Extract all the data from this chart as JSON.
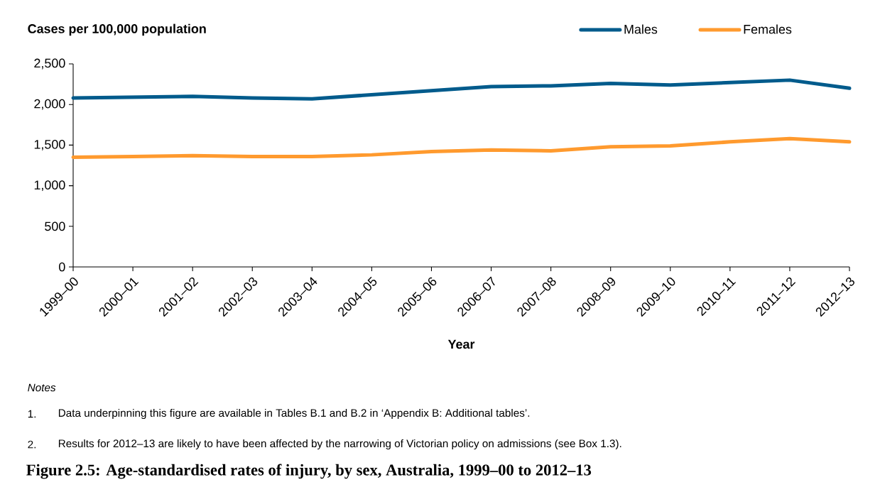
{
  "chart_data": {
    "type": "line",
    "title": "Figure 2.5: Age-standardised rates of injury, by sex, Australia, 1999–00 to 2012–13",
    "ylabel": "Cases per 100,000 population",
    "xlabel": "Year",
    "categories": [
      "1999–00",
      "2000–01",
      "2001–02",
      "2002–03",
      "2003–04",
      "2004–05",
      "2005–06",
      "2006–07",
      "2007–08",
      "2008–09",
      "2009–10",
      "2010–11",
      "2011–12",
      "2012–13"
    ],
    "series": [
      {
        "name": "Males",
        "color": "#005b8c",
        "values": [
          2080,
          2090,
          2100,
          2080,
          2070,
          2120,
          2170,
          2220,
          2230,
          2260,
          2240,
          2270,
          2300,
          2200
        ]
      },
      {
        "name": "Females",
        "color": "#ff9a2e",
        "values": [
          1350,
          1360,
          1370,
          1360,
          1360,
          1380,
          1420,
          1440,
          1430,
          1480,
          1490,
          1540,
          1580,
          1540
        ]
      }
    ],
    "ylim": [
      0,
      2500
    ],
    "yticks": [
      {
        "value": 0,
        "label": "0"
      },
      {
        "value": 500,
        "label": "500"
      },
      {
        "value": 1000,
        "label": "1,000"
      },
      {
        "value": 1500,
        "label": "1,500"
      },
      {
        "value": 2000,
        "label": "2,000"
      },
      {
        "value": 2500,
        "label": "2,500"
      }
    ],
    "grid": false,
    "legend": "top right",
    "line_style": "solid",
    "annotations": [
      "Notes",
      "1.",
      "Data underpinning this figure are available in Tables B.1 and B.2 in ‘Appendix B: Additional tables’.",
      "2.",
      "Results for 2012–13 are likely to have been affected by the narrowing of Victorian policy on admissions (see Box 1.3)."
    ]
  }
}
